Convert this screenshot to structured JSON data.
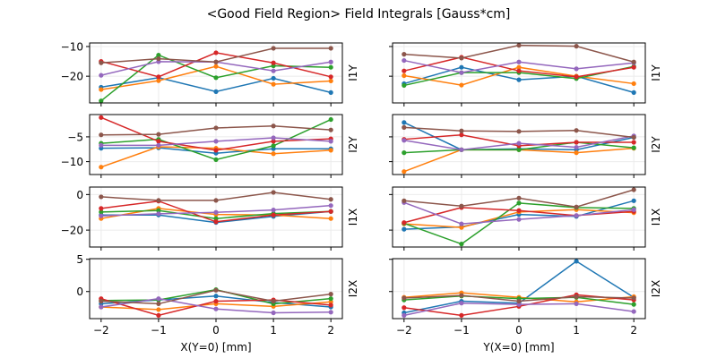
{
  "figure": {
    "title": "<Good Field Region> Field Integrals [Gauss*cm]"
  },
  "series_colors": [
    "#1f77b4",
    "#ff7f0e",
    "#2ca02c",
    "#d62728",
    "#9467bd",
    "#8c564b"
  ],
  "chart_data": [
    {
      "type": "line",
      "row": 0,
      "col": 0,
      "ylabel": "I1Y",
      "xlabel": "",
      "x": [
        -2,
        -1,
        0,
        1,
        2
      ],
      "xlim": [
        -2.2,
        2.2
      ],
      "ylim": [
        -29,
        -8.8
      ],
      "xticks": [
        "-2",
        "-1",
        "0",
        "1",
        "2"
      ],
      "yticks": [
        -10,
        -20
      ],
      "ytick_labels": [
        "−10",
        "−20"
      ],
      "grid": true,
      "series": [
        {
          "name": "series-1",
          "values": [
            -23.7,
            -20.5,
            -25.2,
            -20.7,
            -25.5
          ]
        },
        {
          "name": "series-2",
          "values": [
            -24.5,
            -21.5,
            -16.7,
            -22.7,
            -21.6
          ]
        },
        {
          "name": "series-3",
          "values": [
            -28.3,
            -12.9,
            -20.5,
            -16.5,
            -17.0
          ]
        },
        {
          "name": "series-4",
          "values": [
            -15.0,
            -20.2,
            -12.1,
            -15.5,
            -20.2
          ]
        },
        {
          "name": "series-5",
          "values": [
            -19.7,
            -15.1,
            -15.2,
            -18.2,
            -15.2
          ]
        },
        {
          "name": "series-6",
          "values": [
            -15.5,
            -14.1,
            -15.2,
            -10.6,
            -10.6
          ]
        }
      ]
    },
    {
      "type": "line",
      "row": 0,
      "col": 1,
      "ylabel": "I1Y",
      "xlabel": "",
      "x": [
        -2,
        -1,
        0,
        1,
        2
      ],
      "xlim": [
        -2.2,
        2.2
      ],
      "ylim": [
        -29,
        -8.8
      ],
      "xticks": [
        "-2",
        "-1",
        "0",
        "1",
        "2"
      ],
      "yticks": [
        -10,
        -20
      ],
      "ytick_labels": [],
      "grid": true,
      "series": [
        {
          "name": "series-1",
          "values": [
            -22.5,
            -17.0,
            -21.2,
            -20.0,
            -25.5
          ]
        },
        {
          "name": "series-2",
          "values": [
            -19.8,
            -23.0,
            -17.0,
            -20.0,
            -22.5
          ]
        },
        {
          "name": "series-3",
          "values": [
            -23.1,
            -18.8,
            -18.8,
            -20.8,
            -16.7
          ]
        },
        {
          "name": "series-4",
          "values": [
            -18.2,
            -13.6,
            -18.2,
            -20.2,
            -17.0
          ]
        },
        {
          "name": "series-5",
          "values": [
            -14.7,
            -18.8,
            -15.2,
            -17.5,
            -15.5
          ]
        },
        {
          "name": "series-6",
          "values": [
            -12.6,
            -13.9,
            -9.6,
            -9.9,
            -15.2
          ]
        }
      ]
    },
    {
      "type": "line",
      "row": 1,
      "col": 0,
      "ylabel": "I2Y",
      "xlabel": "",
      "x": [
        -2,
        -1,
        0,
        1,
        2
      ],
      "xlim": [
        -2.2,
        2.2
      ],
      "ylim": [
        -12.6,
        -0.5
      ],
      "xticks": [
        "-2",
        "-1",
        "0",
        "1",
        "2"
      ],
      "yticks": [
        -5,
        -10
      ],
      "ytick_labels": [
        "−5",
        "−10"
      ],
      "grid": true,
      "series": [
        {
          "name": "series-1",
          "values": [
            -7.3,
            -7.2,
            -8.3,
            -7.4,
            -7.4
          ]
        },
        {
          "name": "series-2",
          "values": [
            -11.1,
            -7.0,
            -7.3,
            -8.4,
            -7.7
          ]
        },
        {
          "name": "series-3",
          "values": [
            -6.3,
            -5.5,
            -9.6,
            -6.8,
            -1.5
          ]
        },
        {
          "name": "series-4",
          "values": [
            -1.1,
            -5.9,
            -7.7,
            -5.9,
            -5.4
          ]
        },
        {
          "name": "series-5",
          "values": [
            -6.7,
            -6.7,
            -5.9,
            -5.2,
            -5.9
          ]
        },
        {
          "name": "series-6",
          "values": [
            -4.6,
            -4.5,
            -3.2,
            -2.8,
            -3.6
          ]
        }
      ]
    },
    {
      "type": "line",
      "row": 1,
      "col": 1,
      "ylabel": "I2Y",
      "xlabel": "",
      "x": [
        -2,
        -1,
        0,
        1,
        2
      ],
      "xlim": [
        -2.2,
        2.2
      ],
      "ylim": [
        -12.6,
        -0.5
      ],
      "xticks": [
        "-2",
        "-1",
        "0",
        "1",
        "2"
      ],
      "yticks": [
        -5,
        -10
      ],
      "ytick_labels": [],
      "grid": true,
      "series": [
        {
          "name": "series-1",
          "values": [
            -2.1,
            -7.6,
            -7.4,
            -7.6,
            -5.1
          ]
        },
        {
          "name": "series-2",
          "values": [
            -12.0,
            -7.6,
            -7.6,
            -8.2,
            -7.3
          ]
        },
        {
          "name": "series-3",
          "values": [
            -8.2,
            -7.6,
            -7.6,
            -6.1,
            -7.2
          ]
        },
        {
          "name": "series-4",
          "values": [
            -5.5,
            -4.6,
            -6.8,
            -6.1,
            -6.1
          ]
        },
        {
          "name": "series-5",
          "values": [
            -5.7,
            -7.6,
            -6.3,
            -7.1,
            -4.8
          ]
        },
        {
          "name": "series-6",
          "values": [
            -3.1,
            -3.8,
            -3.9,
            -3.7,
            -5.1
          ]
        }
      ]
    },
    {
      "type": "line",
      "row": 2,
      "col": 0,
      "ylabel": "I1X",
      "xlabel": "",
      "x": [
        -2,
        -1,
        0,
        1,
        2
      ],
      "xlim": [
        -2.2,
        2.2
      ],
      "ylim": [
        -29.5,
        4.2
      ],
      "xticks": [
        "-2",
        "-1",
        "0",
        "1",
        "2"
      ],
      "yticks": [
        0,
        -20
      ],
      "ytick_labels": [
        "0",
        "−20"
      ],
      "grid": true,
      "series": [
        {
          "name": "series-1",
          "values": [
            -11.5,
            -11.5,
            -15.7,
            -12.3,
            -9.5
          ]
        },
        {
          "name": "series-2",
          "values": [
            -13.5,
            -7.8,
            -11.2,
            -11.5,
            -13.5
          ]
        },
        {
          "name": "series-3",
          "values": [
            -9.8,
            -9.0,
            -13.5,
            -10.7,
            -9.5
          ]
        },
        {
          "name": "series-4",
          "values": [
            -7.8,
            -3.7,
            -15.3,
            -11.5,
            -9.5
          ]
        },
        {
          "name": "series-5",
          "values": [
            -12.0,
            -10.8,
            -10.0,
            -8.7,
            -6.2
          ]
        },
        {
          "name": "series-6",
          "values": [
            -1.3,
            -3.3,
            -3.3,
            1.2,
            -2.7
          ]
        }
      ]
    },
    {
      "type": "line",
      "row": 2,
      "col": 1,
      "ylabel": "I1X",
      "xlabel": "",
      "x": [
        -2,
        -1,
        0,
        1,
        2
      ],
      "xlim": [
        -2.2,
        2.2
      ],
      "ylim": [
        -29.5,
        4.2
      ],
      "xticks": [
        "-2",
        "-1",
        "0",
        "1",
        "2"
      ],
      "yticks": [
        0,
        -20
      ],
      "ytick_labels": [],
      "grid": true,
      "series": [
        {
          "name": "series-1",
          "values": [
            -19.5,
            -18.2,
            -11.2,
            -12.3,
            -3.5
          ]
        },
        {
          "name": "series-2",
          "values": [
            -16.5,
            -18.5,
            -9.8,
            -8.5,
            -10.2
          ]
        },
        {
          "name": "series-3",
          "values": [
            -16.2,
            -27.8,
            -4.8,
            -7.3,
            -7.8
          ]
        },
        {
          "name": "series-4",
          "values": [
            -15.8,
            -7.3,
            -9.0,
            -11.8,
            -9.5
          ]
        },
        {
          "name": "series-5",
          "values": [
            -4.5,
            -16.5,
            -14.0,
            -11.8,
            -8.5
          ]
        },
        {
          "name": "series-6",
          "values": [
            -3.5,
            -6.5,
            -2.0,
            -7.0,
            2.7
          ]
        }
      ]
    },
    {
      "type": "line",
      "row": 3,
      "col": 0,
      "ylabel": "I2X",
      "xlabel": "X(Y=0) [mm]",
      "x": [
        -2,
        -1,
        0,
        1,
        2
      ],
      "xlim": [
        -2.2,
        2.2
      ],
      "ylim": [
        -4.2,
        5.1
      ],
      "xticks": [
        "−2",
        "−1",
        "0",
        "1",
        "2"
      ],
      "yticks": [
        5,
        0
      ],
      "ytick_labels": [
        "5",
        "0"
      ],
      "grid": true,
      "series": [
        {
          "name": "series-1",
          "values": [
            -1.9,
            -1.3,
            -0.7,
            -1.7,
            -2.4
          ]
        },
        {
          "name": "series-2",
          "values": [
            -2.4,
            -2.8,
            -1.9,
            -2.3,
            -1.6
          ]
        },
        {
          "name": "series-3",
          "values": [
            -1.4,
            -1.3,
            0.3,
            -1.9,
            -1.1
          ]
        },
        {
          "name": "series-4",
          "values": [
            -1.1,
            -3.7,
            -1.5,
            -1.3,
            -2.1
          ]
        },
        {
          "name": "series-5",
          "values": [
            -2.4,
            -1.1,
            -2.7,
            -3.3,
            -3.2
          ]
        },
        {
          "name": "series-6",
          "values": [
            -1.5,
            -1.9,
            0.2,
            -1.5,
            -0.4
          ]
        }
      ]
    },
    {
      "type": "line",
      "row": 3,
      "col": 1,
      "ylabel": "I2X",
      "xlabel": "Y(X=0) [mm]",
      "x": [
        -2,
        -1,
        0,
        1,
        2
      ],
      "xlim": [
        -2.2,
        2.2
      ],
      "ylim": [
        -4.2,
        5.1
      ],
      "xticks": [
        "−2",
        "−1",
        "0",
        "1",
        "2"
      ],
      "yticks": [
        5,
        0
      ],
      "ytick_labels": [],
      "grid": true,
      "series": [
        {
          "name": "series-1",
          "values": [
            -3.3,
            -1.5,
            -1.8,
            4.7,
            -0.9
          ]
        },
        {
          "name": "series-2",
          "values": [
            -0.9,
            -0.2,
            -0.9,
            -1.6,
            -0.8
          ]
        },
        {
          "name": "series-3",
          "values": [
            -1.3,
            -0.7,
            -1.1,
            -0.9,
            -2.0
          ]
        },
        {
          "name": "series-4",
          "values": [
            -2.5,
            -3.7,
            -2.3,
            -0.5,
            -1.3
          ]
        },
        {
          "name": "series-5",
          "values": [
            -3.7,
            -1.8,
            -2.0,
            -1.9,
            -3.1
          ]
        },
        {
          "name": "series-6",
          "values": [
            -1.0,
            -0.6,
            -1.5,
            -0.8,
            -1.0
          ]
        }
      ]
    }
  ]
}
